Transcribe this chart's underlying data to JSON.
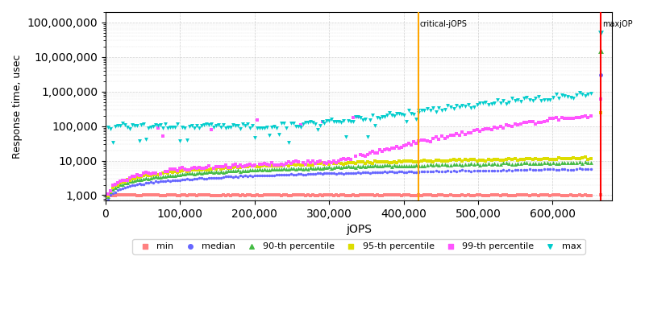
{
  "xlabel": "jOPS",
  "ylabel": "Response time, usec",
  "xlim": [
    0,
    680000
  ],
  "ylim": [
    700,
    200000000
  ],
  "critical_jops": 420000,
  "max_jops": 665000,
  "critical_label": "critical-jOPS",
  "max_label": "maxjOP",
  "background_color": "#ffffff",
  "grid_color": "#cccccc",
  "series": {
    "min": {
      "color": "#ff8080",
      "marker": "s",
      "ms": 2.5,
      "label": "min"
    },
    "median": {
      "color": "#6666ff",
      "marker": "o",
      "ms": 2.5,
      "label": "median"
    },
    "p90": {
      "color": "#44bb44",
      "marker": "^",
      "ms": 3.5,
      "label": "90-th percentile"
    },
    "p95": {
      "color": "#dddd00",
      "marker": "s",
      "ms": 2.5,
      "label": "95-th percentile"
    },
    "p99": {
      "color": "#ff55ff",
      "marker": "s",
      "ms": 2.5,
      "label": "99-th percentile"
    },
    "max": {
      "color": "#00cccc",
      "marker": "v",
      "ms": 3.5,
      "label": "max"
    }
  }
}
